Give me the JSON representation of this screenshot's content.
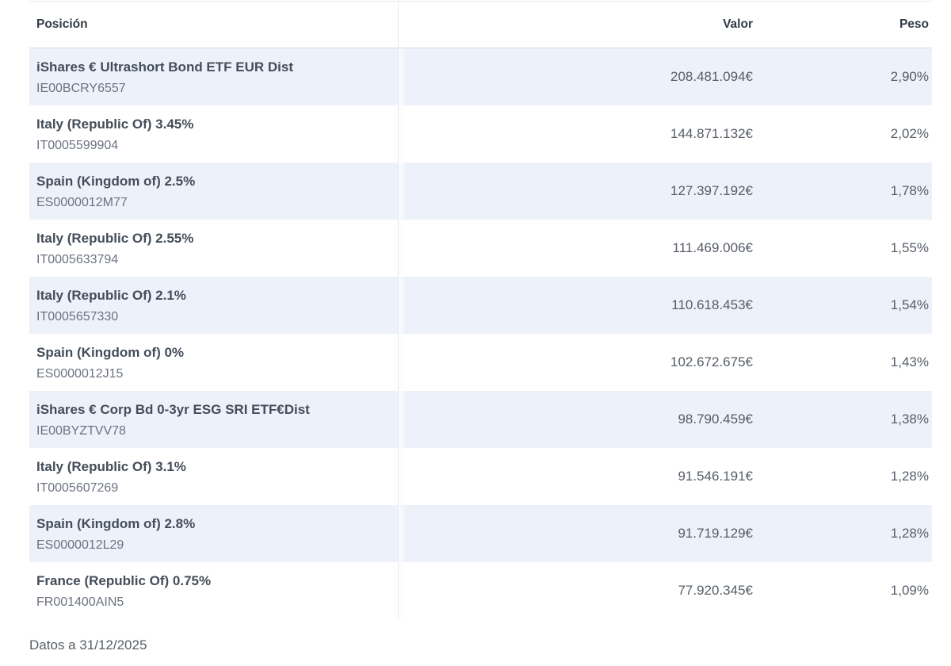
{
  "table": {
    "columns": {
      "position": "Posición",
      "value": "Valor",
      "weight": "Peso"
    },
    "rows": [
      {
        "name": "iShares € Ultrashort Bond ETF EUR Dist",
        "isin": "IE00BCRY6557",
        "value": "208.481.094€",
        "weight": "2,90%"
      },
      {
        "name": "Italy (Republic Of) 3.45%",
        "isin": "IT0005599904",
        "value": "144.871.132€",
        "weight": "2,02%"
      },
      {
        "name": "Spain (Kingdom of) 2.5%",
        "isin": "ES0000012M77",
        "value": "127.397.192€",
        "weight": "1,78%"
      },
      {
        "name": "Italy (Republic Of) 2.55%",
        "isin": "IT0005633794",
        "value": "111.469.006€",
        "weight": "1,55%"
      },
      {
        "name": "Italy (Republic Of) 2.1%",
        "isin": "IT0005657330",
        "value": "110.618.453€",
        "weight": "1,54%"
      },
      {
        "name": "Spain (Kingdom of) 0%",
        "isin": "ES0000012J15",
        "value": "102.672.675€",
        "weight": "1,43%"
      },
      {
        "name": "iShares € Corp Bd 0-3yr ESG SRI ETF€Dist",
        "isin": "IE00BYZTVV78",
        "value": "98.790.459€",
        "weight": "1,38%"
      },
      {
        "name": "Italy (Republic Of) 3.1%",
        "isin": "IT0005607269",
        "value": "91.546.191€",
        "weight": "1,28%"
      },
      {
        "name": "Spain (Kingdom of) 2.8%",
        "isin": "ES0000012L29",
        "value": "91.719.129€",
        "weight": "1,28%"
      },
      {
        "name": "France (Republic Of) 0.75%",
        "isin": "FR001400AIN5",
        "value": "77.920.345€",
        "weight": "1,09%"
      }
    ],
    "footer_note": "Datos a 31/12/2025",
    "colors": {
      "row_alt_bg": "#edf1fa",
      "header_border": "#d8dce2",
      "column_divider": "#e9ebf0",
      "title_text": "#444d5a",
      "muted_text": "#6b7280",
      "value_text": "#575e68"
    }
  }
}
